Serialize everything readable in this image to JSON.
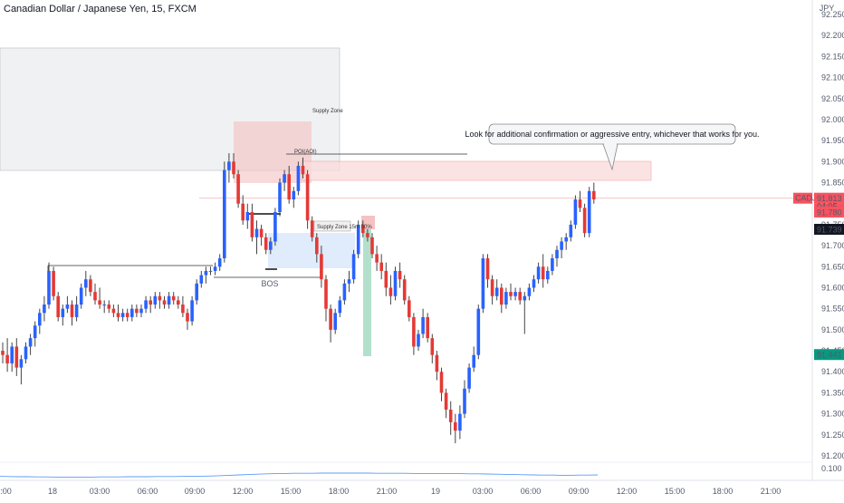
{
  "chart_data": {
    "type": "candlestick",
    "title": "Canadian Dollar / Japanese Yen, 15, FXCM",
    "currency": "JPY",
    "y_ticks": [
      "92.250",
      "92.200",
      "92.150",
      "92.100",
      "92.050",
      "92.000",
      "91.950",
      "91.900",
      "91.850",
      "91.800",
      "91.750",
      "91.700",
      "91.650",
      "91.600",
      "91.550",
      "91.500",
      "91.450",
      "91.400",
      "91.350",
      "91.300",
      "91.250",
      "91.200"
    ],
    "x_ticks": [
      "1:00",
      "18",
      "03:00",
      "06:00",
      "09:00",
      "12:00",
      "15:00",
      "18:00",
      "21:00",
      "19",
      "03:00",
      "06:00",
      "09:00",
      "12:00",
      "15:00",
      "18:00",
      "21:00"
    ],
    "ylim": [
      91.18,
      92.27
    ],
    "badges": {
      "symbol": "CADJPY",
      "price": "91.813",
      "countdown": "04:05",
      "level_1": "91.780",
      "level_2": "91.739",
      "level_3": "91.441",
      "indicator": "0.100"
    },
    "annotations": {
      "supply_zone": "Supply Zone",
      "poi": "POI(AOI)",
      "supply_zone_15m": "Supply Zone 15m 50%",
      "bos": "BOS",
      "callout": "Look for additional confirmation or aggressive entry, whichever that works for you."
    },
    "colors": {
      "up": "#2962ff",
      "down": "#e53935",
      "wick": "#444444"
    },
    "candles": [
      [
        91.45,
        91.47,
        91.42,
        91.44
      ],
      [
        91.44,
        91.48,
        91.4,
        91.42
      ],
      [
        91.42,
        91.47,
        91.4,
        91.46
      ],
      [
        91.46,
        91.48,
        91.39,
        91.41
      ],
      [
        91.41,
        91.44,
        91.37,
        91.43
      ],
      [
        91.43,
        91.47,
        91.42,
        91.46
      ],
      [
        91.46,
        91.49,
        91.44,
        91.48
      ],
      [
        91.48,
        91.52,
        91.46,
        91.51
      ],
      [
        91.51,
        91.55,
        91.49,
        91.54
      ],
      [
        91.54,
        91.58,
        91.52,
        91.56
      ],
      [
        91.56,
        91.66,
        91.55,
        91.64
      ],
      [
        91.64,
        91.65,
        91.57,
        91.58
      ],
      [
        91.58,
        91.59,
        91.52,
        91.53
      ],
      [
        91.53,
        91.56,
        91.51,
        91.55
      ],
      [
        91.55,
        91.58,
        91.54,
        91.56
      ],
      [
        91.56,
        91.57,
        91.51,
        91.53
      ],
      [
        91.53,
        91.58,
        91.52,
        91.56
      ],
      [
        91.56,
        91.61,
        91.55,
        91.6
      ],
      [
        91.6,
        91.64,
        91.58,
        91.62
      ],
      [
        91.62,
        91.63,
        91.58,
        91.59
      ],
      [
        91.59,
        91.61,
        91.56,
        91.57
      ],
      [
        91.57,
        91.6,
        91.55,
        91.56
      ],
      [
        91.56,
        91.57,
        91.54,
        91.56
      ],
      [
        91.56,
        91.57,
        91.54,
        91.55
      ],
      [
        91.55,
        91.56,
        91.53,
        91.54
      ],
      [
        91.54,
        91.56,
        91.52,
        91.53
      ],
      [
        91.53,
        91.55,
        91.52,
        91.54
      ],
      [
        91.54,
        91.55,
        91.52,
        91.53
      ],
      [
        91.53,
        91.56,
        91.52,
        91.55
      ],
      [
        91.55,
        91.56,
        91.53,
        91.54
      ],
      [
        91.54,
        91.56,
        91.53,
        91.55
      ],
      [
        91.55,
        91.58,
        91.54,
        91.57
      ],
      [
        91.57,
        91.58,
        91.54,
        91.56
      ],
      [
        91.56,
        91.59,
        91.55,
        91.58
      ],
      [
        91.58,
        91.59,
        91.55,
        91.57
      ],
      [
        91.57,
        91.58,
        91.55,
        91.56
      ],
      [
        91.56,
        91.59,
        91.55,
        91.58
      ],
      [
        91.58,
        91.59,
        91.56,
        91.57
      ],
      [
        91.57,
        91.58,
        91.55,
        91.56
      ],
      [
        91.56,
        91.58,
        91.53,
        91.54
      ],
      [
        91.54,
        91.55,
        91.5,
        91.52
      ],
      [
        91.52,
        91.58,
        91.51,
        91.57
      ],
      [
        91.57,
        91.62,
        91.56,
        91.61
      ],
      [
        91.61,
        91.64,
        91.6,
        91.63
      ],
      [
        91.63,
        91.65,
        91.61,
        91.64
      ],
      [
        91.64,
        91.65,
        91.63,
        91.64
      ],
      [
        91.64,
        91.66,
        91.63,
        91.65
      ],
      [
        91.65,
        91.68,
        91.64,
        91.67
      ],
      [
        91.67,
        91.9,
        91.66,
        91.88
      ],
      [
        91.88,
        91.92,
        91.85,
        91.9
      ],
      [
        91.9,
        91.92,
        91.86,
        91.87
      ],
      [
        91.87,
        91.88,
        91.79,
        91.8
      ],
      [
        91.8,
        91.82,
        91.75,
        91.76
      ],
      [
        91.76,
        91.8,
        91.74,
        91.78
      ],
      [
        91.78,
        91.8,
        91.71,
        91.72
      ],
      [
        91.72,
        91.76,
        91.68,
        91.74
      ],
      [
        91.74,
        91.75,
        91.7,
        91.72
      ],
      [
        91.72,
        91.73,
        91.68,
        91.69
      ],
      [
        91.69,
        91.72,
        91.68,
        91.71
      ],
      [
        91.71,
        91.79,
        91.7,
        91.78
      ],
      [
        91.78,
        91.86,
        91.77,
        91.85
      ],
      [
        91.85,
        91.88,
        91.83,
        91.87
      ],
      [
        91.87,
        91.89,
        91.8,
        91.81
      ],
      [
        91.81,
        91.84,
        91.79,
        91.83
      ],
      [
        91.83,
        91.9,
        91.82,
        91.89
      ],
      [
        91.89,
        91.91,
        91.86,
        91.87
      ],
      [
        91.87,
        91.88,
        91.74,
        91.76
      ],
      [
        91.76,
        91.77,
        91.71,
        91.72
      ],
      [
        91.72,
        91.73,
        91.66,
        91.68
      ],
      [
        91.68,
        91.7,
        91.6,
        91.62
      ],
      [
        91.62,
        91.63,
        91.52,
        91.55
      ],
      [
        91.55,
        91.56,
        91.47,
        91.5
      ],
      [
        91.5,
        91.55,
        91.49,
        91.54
      ],
      [
        91.54,
        91.58,
        91.53,
        91.57
      ],
      [
        91.57,
        91.62,
        91.56,
        91.61
      ],
      [
        91.61,
        91.64,
        91.59,
        91.62
      ],
      [
        91.62,
        91.69,
        91.61,
        91.68
      ],
      [
        91.68,
        91.76,
        91.67,
        91.75
      ],
      [
        91.75,
        91.76,
        91.72,
        91.73
      ],
      [
        91.73,
        91.74,
        91.71,
        91.72
      ],
      [
        91.72,
        91.73,
        91.67,
        91.68
      ],
      [
        91.68,
        91.7,
        91.64,
        91.66
      ],
      [
        91.66,
        91.68,
        91.62,
        91.64
      ],
      [
        91.64,
        91.66,
        91.58,
        91.6
      ],
      [
        91.6,
        91.63,
        91.56,
        91.58
      ],
      [
        91.58,
        91.65,
        91.57,
        91.64
      ],
      [
        91.64,
        91.66,
        91.6,
        91.62
      ],
      [
        91.62,
        91.63,
        91.56,
        91.57
      ],
      [
        91.57,
        91.58,
        91.52,
        91.53
      ],
      [
        91.53,
        91.54,
        91.44,
        91.46
      ],
      [
        91.46,
        91.5,
        91.45,
        91.49
      ],
      [
        91.49,
        91.55,
        91.48,
        91.53
      ],
      [
        91.53,
        91.54,
        91.47,
        91.48
      ],
      [
        91.48,
        91.49,
        91.42,
        91.44
      ],
      [
        91.44,
        91.45,
        91.38,
        91.4
      ],
      [
        91.4,
        91.41,
        91.33,
        91.35
      ],
      [
        91.35,
        91.36,
        91.29,
        91.31
      ],
      [
        91.31,
        91.33,
        91.25,
        91.28
      ],
      [
        91.28,
        91.3,
        91.23,
        91.26
      ],
      [
        91.26,
        91.32,
        91.24,
        91.3
      ],
      [
        91.3,
        91.38,
        91.29,
        91.36
      ],
      [
        91.36,
        91.42,
        91.35,
        91.41
      ],
      [
        91.41,
        91.46,
        91.4,
        91.44
      ],
      [
        91.44,
        91.56,
        91.43,
        91.55
      ],
      [
        91.55,
        91.68,
        91.54,
        91.67
      ],
      [
        91.67,
        91.68,
        91.6,
        91.62
      ],
      [
        91.62,
        91.63,
        91.56,
        91.58
      ],
      [
        91.58,
        91.62,
        91.57,
        91.6
      ],
      [
        91.6,
        91.61,
        91.54,
        91.56
      ],
      [
        91.56,
        91.6,
        91.55,
        91.59
      ],
      [
        91.59,
        91.61,
        91.57,
        91.58
      ],
      [
        91.58,
        91.6,
        91.57,
        91.59
      ],
      [
        91.59,
        91.6,
        91.56,
        91.57
      ],
      [
        91.57,
        91.59,
        91.49,
        91.58
      ],
      [
        91.58,
        91.61,
        91.57,
        91.6
      ],
      [
        91.6,
        91.63,
        91.59,
        91.62
      ],
      [
        91.62,
        91.66,
        91.61,
        91.65
      ],
      [
        91.65,
        91.68,
        91.6,
        91.62
      ],
      [
        91.62,
        91.65,
        91.61,
        91.64
      ],
      [
        91.64,
        91.68,
        91.63,
        91.67
      ],
      [
        91.67,
        91.7,
        91.65,
        91.69
      ],
      [
        91.69,
        91.72,
        91.67,
        91.71
      ],
      [
        91.71,
        91.73,
        91.69,
        91.72
      ],
      [
        91.72,
        91.76,
        91.71,
        91.75
      ],
      [
        91.75,
        91.82,
        91.74,
        91.81
      ],
      [
        91.81,
        91.83,
        91.78,
        91.79
      ],
      [
        91.79,
        91.8,
        91.72,
        91.73
      ],
      [
        91.73,
        91.84,
        91.72,
        91.83
      ],
      [
        91.83,
        91.85,
        91.8,
        91.81
      ]
    ],
    "indicator_series": [
      0.082,
      0.081,
      0.08,
      0.08,
      0.079,
      0.079,
      0.078,
      0.078,
      0.078,
      0.078,
      0.078,
      0.079,
      0.079,
      0.079,
      0.08,
      0.08,
      0.08,
      0.081,
      0.081,
      0.081,
      0.082,
      0.082,
      0.083,
      0.084,
      0.086,
      0.088,
      0.09,
      0.092,
      0.094,
      0.096,
      0.097,
      0.098,
      0.099,
      0.099,
      0.099,
      0.1,
      0.1,
      0.1,
      0.1,
      0.1,
      0.1,
      0.099,
      0.099,
      0.099,
      0.099,
      0.098,
      0.098,
      0.098,
      0.097,
      0.097,
      0.097,
      0.096,
      0.096,
      0.095,
      0.094,
      0.093,
      0.092,
      0.091,
      0.09,
      0.089,
      0.089,
      0.088,
      0.088,
      0.089,
      0.089,
      0.09
    ]
  }
}
